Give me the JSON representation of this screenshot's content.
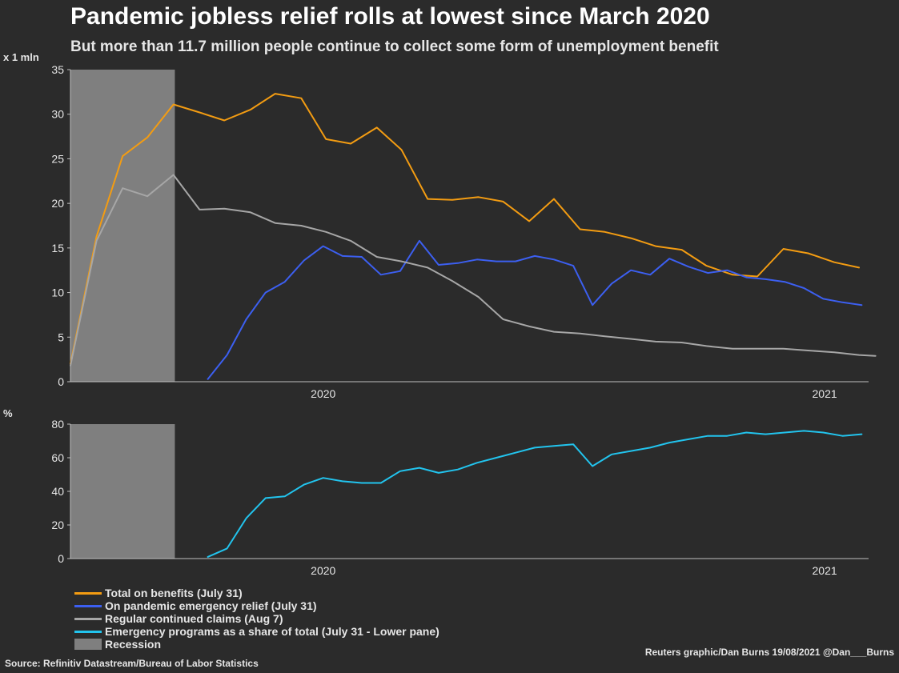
{
  "header": {
    "title": "Pandemic jobless relief rolls at lowest since March 2020",
    "subtitle": "But more than 11.7 million people continue to collect some form of unemployment benefit"
  },
  "legend": {
    "items": [
      {
        "label": "Total on benefits (July 31)",
        "color": "#f39c12",
        "kind": "line"
      },
      {
        "label": "On pandemic emergency relief (July 31)",
        "color": "#3c5ff0",
        "kind": "line"
      },
      {
        "label": "Regular continued claims (Aug 7)",
        "color": "#a6a6a6",
        "kind": "line"
      },
      {
        "label": "Emergency programs as a share of total (July 31 - Lower pane)",
        "color": "#22c4ee",
        "kind": "line"
      },
      {
        "label": "Recession",
        "color": "#7f7f7f",
        "kind": "box"
      }
    ]
  },
  "footer": {
    "credit": "Reuters graphic/Dan Burns 19/08/2021 @Dan___Burns",
    "source": "Source: Refinitiv Datastream/Bureau of Labor Statistics"
  },
  "colors": {
    "background": "#2b2b2b",
    "axis": "#bfbfbf",
    "total": "#f39c12",
    "pandemic": "#3c5ff0",
    "regular": "#a6a6a6",
    "share": "#22c4ee",
    "recession": "#7f7f7f"
  },
  "chart_data": [
    {
      "type": "line",
      "pane": "upper",
      "title": "",
      "ylabel": "x 1 mln",
      "ylim": [
        0,
        35
      ],
      "yticks": [
        0,
        5,
        10,
        15,
        20,
        25,
        30,
        35
      ],
      "xlim": [
        "2019-12-30",
        "2021-08-02"
      ],
      "xticks": [
        {
          "label": "2020",
          "x": "2020-07-01"
        },
        {
          "label": "2021",
          "x": "2021-07-01"
        }
      ],
      "recession": {
        "from": "2019-12-30",
        "to": "2020-03-15"
      },
      "grid": false,
      "series": [
        {
          "name": "Total on benefits (July 31)",
          "color": "#f39c12",
          "x": [
            "2019-12-30",
            "2020-01-18",
            "2020-02-06",
            "2020-02-24",
            "2020-03-14",
            "2020-04-02",
            "2020-04-20",
            "2020-05-09",
            "2020-05-27",
            "2020-06-15",
            "2020-07-03",
            "2020-07-21",
            "2020-08-09",
            "2020-08-27",
            "2020-09-15",
            "2020-10-03",
            "2020-10-22",
            "2020-11-09",
            "2020-11-28",
            "2020-12-16",
            "2021-01-04",
            "2021-01-22",
            "2021-02-10",
            "2021-02-28",
            "2021-03-19",
            "2021-04-06",
            "2021-04-25",
            "2021-05-13",
            "2021-06-01",
            "2021-06-19",
            "2021-07-08",
            "2021-07-26"
          ],
          "values": [
            2.0,
            16.3,
            25.3,
            27.4,
            31.1,
            30.2,
            29.3,
            30.5,
            32.3,
            31.8,
            27.2,
            26.7,
            28.5,
            26.0,
            20.5,
            20.4,
            20.7,
            20.2,
            18.0,
            20.5,
            17.1,
            16.8,
            16.1,
            15.2,
            14.8,
            13.0,
            12.0,
            11.8,
            14.9,
            14.4,
            13.4,
            12.8
          ]
        },
        {
          "name": "On pandemic emergency relief (July 31)",
          "color": "#3c5ff0",
          "x": [
            "2020-04-08",
            "2020-04-22",
            "2020-05-06",
            "2020-05-20",
            "2020-06-03",
            "2020-06-17",
            "2020-07-01",
            "2020-07-15",
            "2020-07-29",
            "2020-08-12",
            "2020-08-26",
            "2020-09-09",
            "2020-09-23",
            "2020-10-07",
            "2020-10-21",
            "2020-11-04",
            "2020-11-18",
            "2020-12-02",
            "2020-12-16",
            "2020-12-30",
            "2021-01-13",
            "2021-01-27",
            "2021-02-10",
            "2021-02-24",
            "2021-03-10",
            "2021-03-24",
            "2021-04-07",
            "2021-04-21",
            "2021-05-05",
            "2021-05-19",
            "2021-06-02",
            "2021-06-16",
            "2021-06-30",
            "2021-07-14",
            "2021-07-28"
          ],
          "values": [
            0.3,
            3.0,
            7.0,
            10.0,
            11.2,
            13.6,
            15.2,
            14.1,
            14.0,
            12.0,
            12.4,
            15.8,
            13.1,
            13.3,
            13.7,
            13.5,
            13.5,
            14.1,
            13.7,
            13.0,
            8.6,
            11.0,
            12.5,
            12.0,
            13.8,
            12.9,
            12.2,
            12.5,
            11.7,
            11.5,
            11.2,
            10.5,
            9.3,
            8.9,
            8.6
          ]
        },
        {
          "name": "Regular continued claims (Aug 7)",
          "color": "#a6a6a6",
          "x": [
            "2019-12-30",
            "2020-01-18",
            "2020-02-06",
            "2020-02-24",
            "2020-03-14",
            "2020-04-02",
            "2020-04-20",
            "2020-05-09",
            "2020-05-27",
            "2020-06-15",
            "2020-07-03",
            "2020-07-21",
            "2020-08-09",
            "2020-08-27",
            "2020-09-15",
            "2020-10-03",
            "2020-10-22",
            "2020-11-09",
            "2020-11-28",
            "2020-12-16",
            "2021-01-04",
            "2021-01-22",
            "2021-02-10",
            "2021-02-28",
            "2021-03-19",
            "2021-04-06",
            "2021-04-25",
            "2021-05-13",
            "2021-06-01",
            "2021-06-19",
            "2021-07-08",
            "2021-07-26",
            "2021-08-07"
          ],
          "values": [
            1.8,
            15.8,
            21.7,
            20.8,
            23.2,
            19.3,
            19.4,
            19.0,
            17.8,
            17.5,
            16.8,
            15.8,
            14.0,
            13.5,
            12.8,
            11.3,
            9.5,
            7.0,
            6.2,
            5.6,
            5.4,
            5.1,
            4.8,
            4.5,
            4.4,
            4.0,
            3.7,
            3.7,
            3.7,
            3.5,
            3.3,
            3.0,
            2.9
          ]
        }
      ]
    },
    {
      "type": "line",
      "pane": "lower",
      "title": "",
      "ylabel": "%",
      "ylim": [
        0,
        80
      ],
      "yticks": [
        0,
        20,
        40,
        60,
        80
      ],
      "xlim": [
        "2019-12-30",
        "2021-08-02"
      ],
      "xticks": [
        {
          "label": "2020",
          "x": "2020-07-01"
        },
        {
          "label": "2021",
          "x": "2021-07-01"
        }
      ],
      "recession": {
        "from": "2019-12-30",
        "to": "2020-03-15"
      },
      "grid": false,
      "series": [
        {
          "name": "Emergency programs as a share of total (July 31 - Lower pane)",
          "color": "#22c4ee",
          "x": [
            "2020-04-08",
            "2020-04-22",
            "2020-05-06",
            "2020-05-20",
            "2020-06-03",
            "2020-06-17",
            "2020-07-01",
            "2020-07-15",
            "2020-07-29",
            "2020-08-12",
            "2020-08-26",
            "2020-09-09",
            "2020-09-23",
            "2020-10-07",
            "2020-10-21",
            "2020-11-04",
            "2020-11-18",
            "2020-12-02",
            "2020-12-16",
            "2020-12-30",
            "2021-01-13",
            "2021-01-27",
            "2021-02-10",
            "2021-02-24",
            "2021-03-10",
            "2021-03-24",
            "2021-04-07",
            "2021-04-21",
            "2021-05-05",
            "2021-05-19",
            "2021-06-02",
            "2021-06-16",
            "2021-06-30",
            "2021-07-14",
            "2021-07-28"
          ],
          "values": [
            1,
            6,
            24,
            36,
            37,
            44,
            48,
            46,
            45,
            45,
            52,
            54,
            51,
            53,
            57,
            60,
            63,
            66,
            67,
            68,
            55,
            62,
            64,
            66,
            69,
            71,
            73,
            73,
            75,
            74,
            75,
            76,
            75,
            73,
            74
          ]
        }
      ]
    }
  ]
}
